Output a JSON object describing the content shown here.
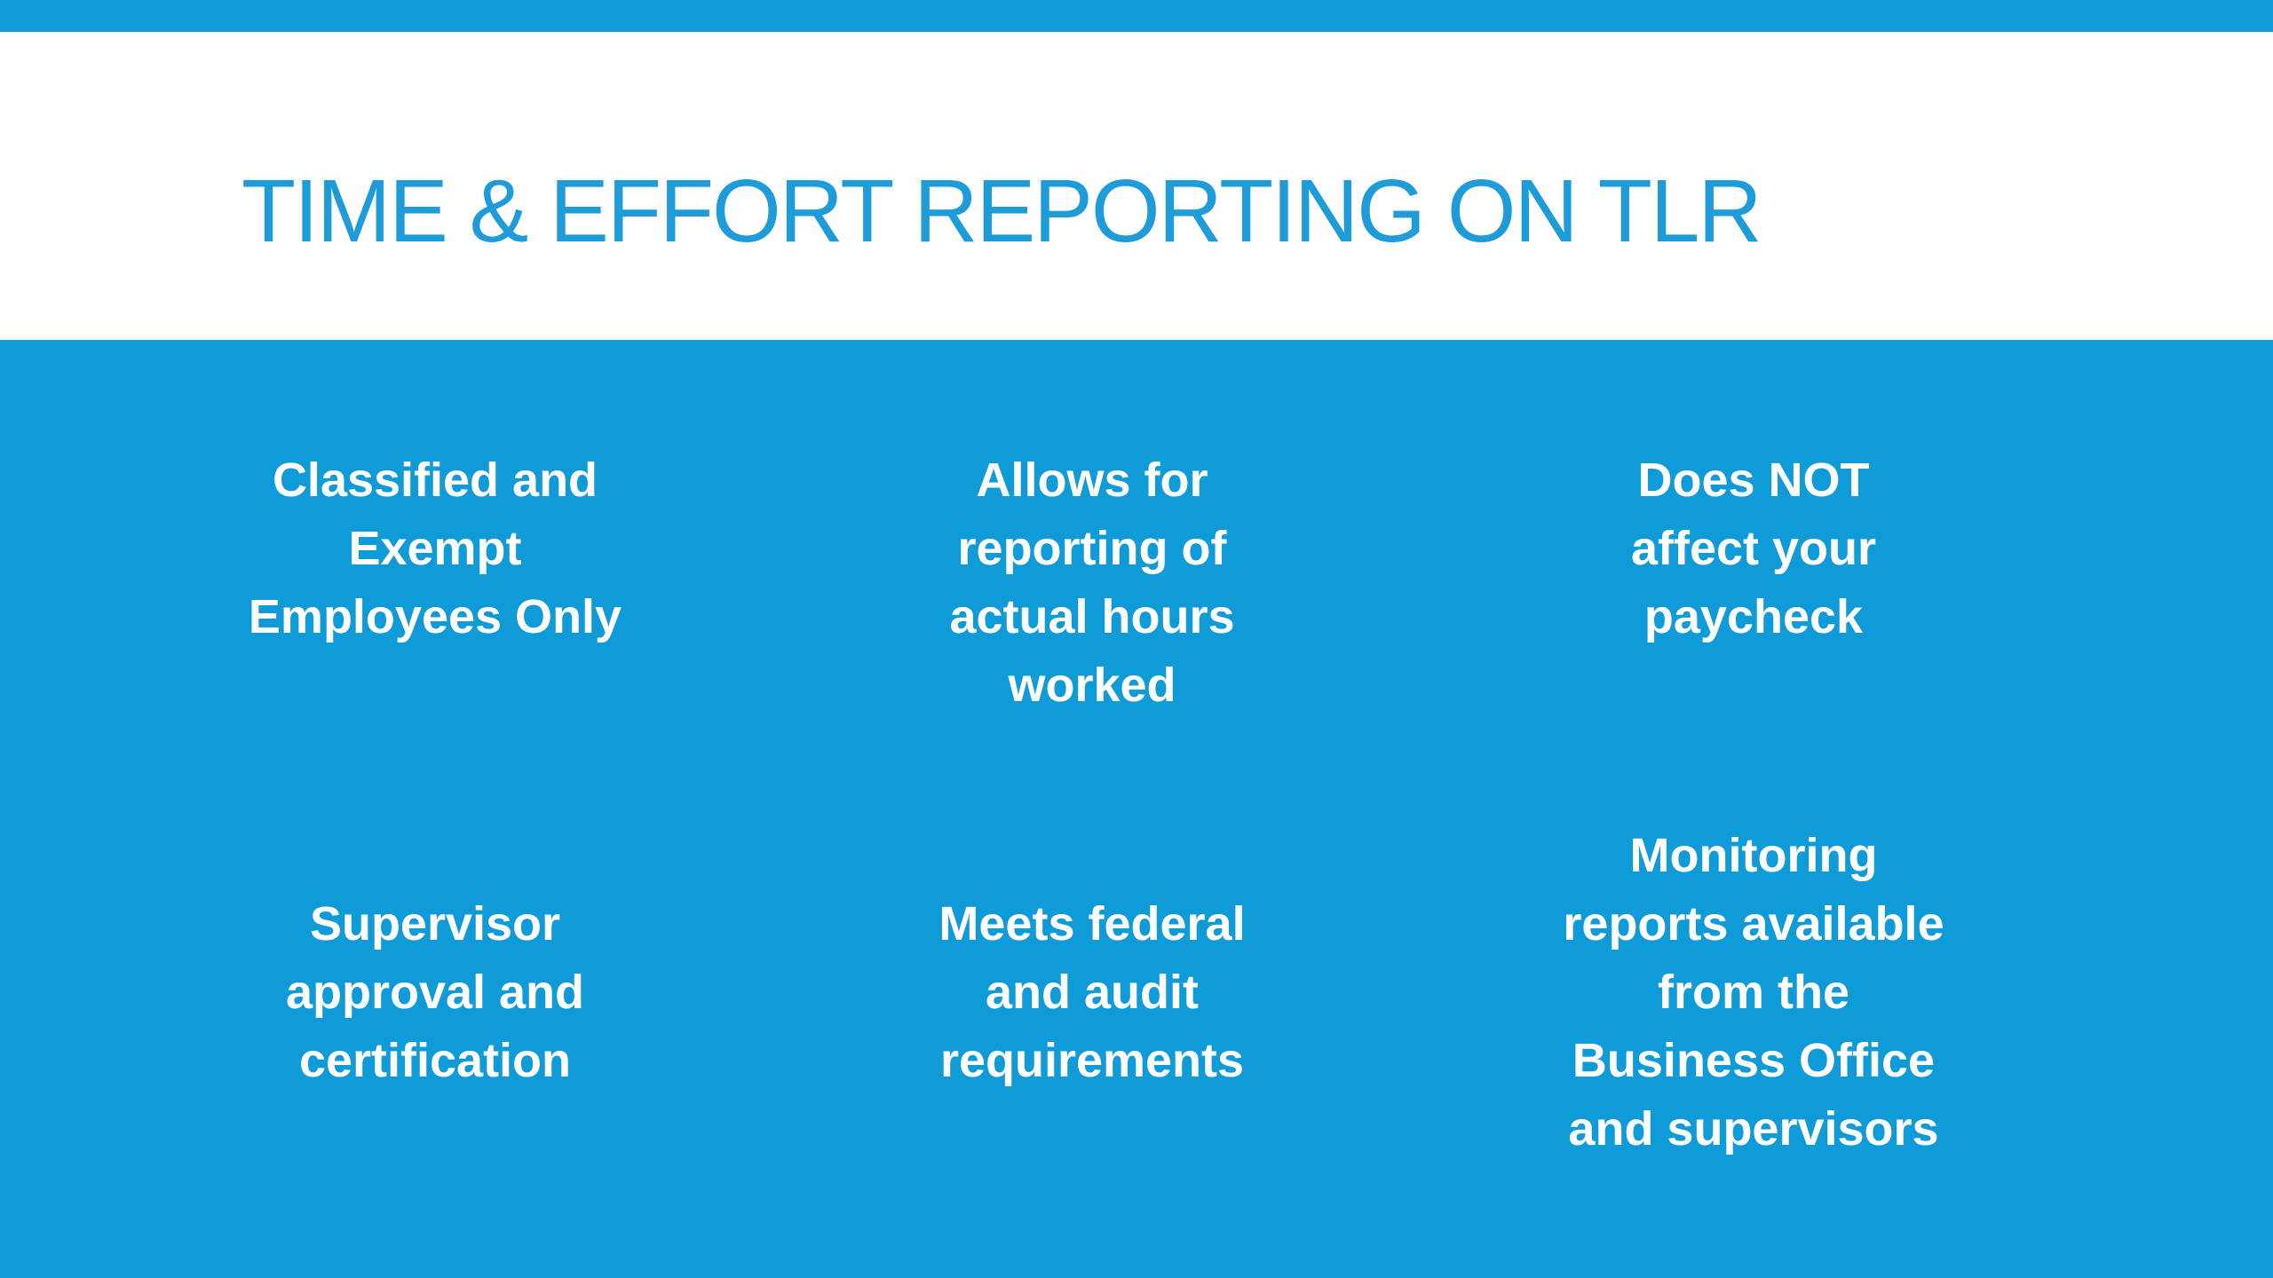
{
  "slide_title": {
    "text": "TIME & EFFORT REPORTING ON TLR"
  },
  "colors": {
    "accent_blue": "#0F9BD8",
    "title_blue": "#1E9CD9",
    "body_text": "#FFFFFF"
  },
  "cards": [
    {
      "id": "classified-exempt",
      "text": "Classified and\nExempt\nEmployees Only"
    },
    {
      "id": "actual-hours",
      "text": "Allows for\nreporting of\nactual hours\nworked"
    },
    {
      "id": "paycheck",
      "text": "Does NOT\naffect your\npaycheck"
    },
    {
      "id": "supervisor-approval",
      "text": "Supervisor\napproval and\ncertification"
    },
    {
      "id": "federal-audit",
      "text": "Meets federal\nand audit\nrequirements"
    },
    {
      "id": "monitoring-reports",
      "text": "Monitoring\nreports available\nfrom the\nBusiness Office\nand supervisors"
    }
  ]
}
